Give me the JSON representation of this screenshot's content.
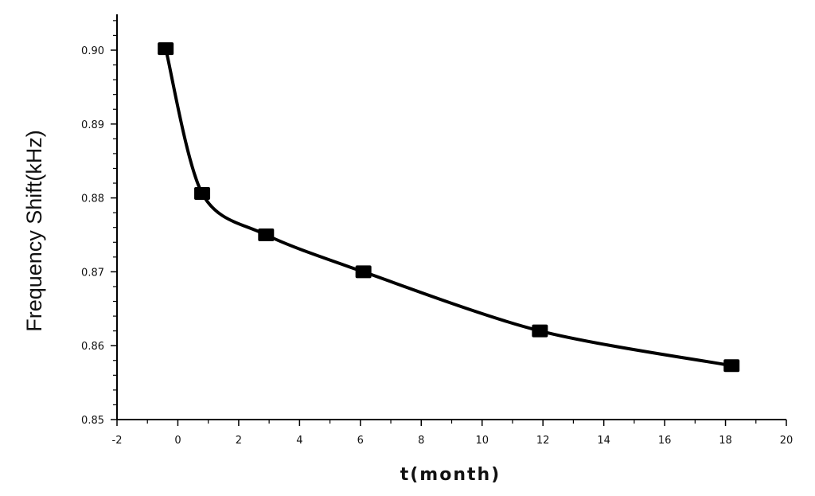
{
  "chart_data": {
    "type": "line",
    "title": "",
    "xlabel": "t(month)",
    "ylabel": "Frequency Shift(kHz)",
    "xlim": [
      -2,
      20
    ],
    "ylim": [
      0.85,
      0.905
    ],
    "x_ticks": [
      -2,
      0,
      2,
      4,
      6,
      8,
      10,
      12,
      14,
      16,
      18,
      20
    ],
    "x_tick_labels": [
      "-2",
      "0",
      "2",
      "4",
      "6",
      "8",
      "10",
      "12",
      "14",
      "16",
      "18",
      "20"
    ],
    "y_ticks": [
      0.85,
      0.86,
      0.87,
      0.88,
      0.89,
      0.9
    ],
    "y_tick_labels": [
      "0.85",
      "0.86",
      "0.87",
      "0.88",
      "0.89",
      "0.90"
    ],
    "grid": false,
    "legend": "none",
    "series": [
      {
        "x": [
          -0.4,
          0.8,
          2.9,
          6.1,
          11.9,
          18.2
        ],
        "y": [
          0.9002,
          0.8806,
          0.875,
          0.87,
          0.862,
          0.8573
        ],
        "marker": "square",
        "color": "#000000"
      }
    ]
  }
}
